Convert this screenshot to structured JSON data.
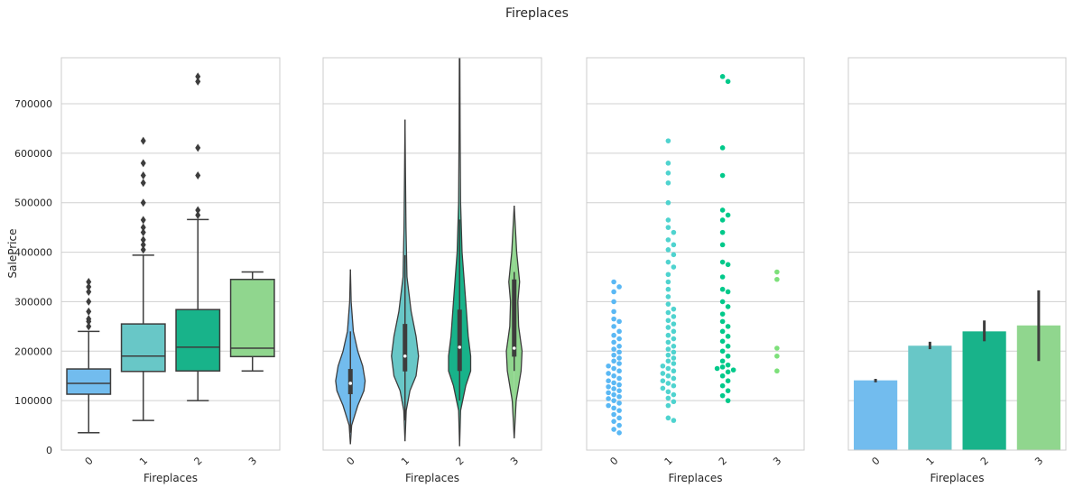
{
  "title": "Fireplaces",
  "chart_data": [
    {
      "type": "box",
      "xlabel": "Fireplaces",
      "ylabel": "SalePrice",
      "categories": [
        "0",
        "1",
        "2",
        "3"
      ],
      "colors": [
        "#72bcee",
        "#68c7c7",
        "#18b38a",
        "#90d68e"
      ],
      "whisker_low": [
        35000,
        60000,
        100000,
        160000
      ],
      "q1": [
        113000,
        159000,
        160000,
        189000
      ],
      "median": [
        135000,
        190000,
        208000,
        206000
      ],
      "q3": [
        164000,
        255000,
        284000,
        345000
      ],
      "whisker_high": [
        240000,
        394000,
        466000,
        360000
      ],
      "outliers": [
        [
          250000,
          260000,
          265000,
          280000,
          300000,
          320000,
          330000,
          340000
        ],
        [
          405000,
          415000,
          425000,
          440000,
          450000,
          465000,
          500000,
          540000,
          555000,
          580000,
          625000
        ],
        [
          475000,
          485000,
          555000,
          611000,
          745000,
          755000
        ],
        []
      ],
      "ylim": [
        0,
        793000
      ],
      "yticks": [
        0,
        100000,
        200000,
        300000,
        400000,
        500000,
        600000,
        700000
      ],
      "show_ytick_labels": true,
      "grid": true
    },
    {
      "type": "violin",
      "xlabel": "Fireplaces",
      "categories": [
        "0",
        "1",
        "2",
        "3"
      ],
      "colors": [
        "#72bcee",
        "#68c7c7",
        "#18b38a",
        "#90d68e"
      ],
      "density": [
        {
          "y": [
            12000,
            50000,
            90000,
            120000,
            140000,
            170000,
            200000,
            240000,
            300000,
            365000
          ],
          "width": [
            0,
            0.05,
            0.3,
            0.55,
            0.6,
            0.5,
            0.3,
            0.12,
            0.03,
            0
          ]
        },
        {
          "y": [
            18000,
            80000,
            120000,
            150000,
            190000,
            230000,
            280000,
            350000,
            450000,
            550000,
            668000
          ],
          "width": [
            0,
            0.05,
            0.2,
            0.45,
            0.55,
            0.45,
            0.25,
            0.08,
            0.04,
            0.02,
            0
          ]
        },
        {
          "y": [
            8000,
            80000,
            130000,
            160000,
            190000,
            230000,
            300000,
            400000,
            500000,
            650000,
            793000
          ],
          "width": [
            0,
            0.04,
            0.25,
            0.45,
            0.45,
            0.35,
            0.25,
            0.1,
            0.04,
            0.02,
            0.01
          ]
        },
        {
          "y": [
            24000,
            100000,
            160000,
            200000,
            250000,
            300000,
            340000,
            400000,
            494000
          ],
          "width": [
            0,
            0.08,
            0.28,
            0.32,
            0.18,
            0.15,
            0.22,
            0.1,
            0
          ]
        }
      ],
      "whisker_low": [
        35000,
        60000,
        100000,
        160000
      ],
      "q1": [
        113000,
        159000,
        160000,
        189000
      ],
      "median": [
        135000,
        190000,
        208000,
        206000
      ],
      "q3": [
        164000,
        255000,
        284000,
        345000
      ],
      "whisker_high": [
        240000,
        394000,
        466000,
        360000
      ],
      "ylim": [
        0,
        793000
      ],
      "yticks": [
        0,
        100000,
        200000,
        300000,
        400000,
        500000,
        600000,
        700000
      ],
      "show_ytick_labels": false,
      "grid": true
    },
    {
      "type": "swarm",
      "xlabel": "Fireplaces",
      "categories": [
        "0",
        "1",
        "2",
        "3"
      ],
      "colors": [
        "#5ab8f4",
        "#4fd3cf",
        "#00c98a",
        "#7de07a"
      ],
      "values": [
        [
          340000,
          330000,
          320000,
          300000,
          280000,
          265000,
          260000,
          250000,
          240000,
          232000,
          225000,
          218000,
          210000,
          204000,
          198000,
          192000,
          186000,
          180000,
          175000,
          170000,
          165000,
          160000,
          155000,
          150000,
          145000,
          140000,
          136000,
          132000,
          128000,
          124000,
          120000,
          116000,
          112000,
          108000,
          104000,
          100000,
          95000,
          90000,
          85000,
          80000,
          72000,
          65000,
          58000,
          50000,
          42000,
          35000
        ],
        [
          625000,
          580000,
          560000,
          540000,
          500000,
          465000,
          450000,
          440000,
          425000,
          415000,
          405000,
          395000,
          380000,
          370000,
          355000,
          340000,
          325000,
          310000,
          295000,
          285000,
          278000,
          270000,
          262000,
          255000,
          248000,
          240000,
          232000,
          225000,
          218000,
          210000,
          204000,
          198000,
          192000,
          186000,
          180000,
          175000,
          170000,
          165000,
          160000,
          155000,
          150000,
          145000,
          140000,
          135000,
          130000,
          125000,
          118000,
          112000,
          105000,
          98000,
          90000,
          65000,
          60000
        ],
        [
          755000,
          745000,
          611000,
          555000,
          485000,
          475000,
          465000,
          440000,
          415000,
          380000,
          375000,
          350000,
          325000,
          320000,
          300000,
          290000,
          275000,
          260000,
          250000,
          240000,
          230000,
          220000,
          210000,
          200000,
          190000,
          180000,
          172000,
          168000,
          165000,
          162000,
          158000,
          150000,
          140000,
          130000,
          120000,
          110000,
          100000
        ],
        [
          160000,
          190000,
          206000,
          345000,
          360000
        ]
      ],
      "ylim": [
        0,
        793000
      ],
      "yticks": [
        0,
        100000,
        200000,
        300000,
        400000,
        500000,
        600000,
        700000
      ],
      "show_ytick_labels": false,
      "grid": true
    },
    {
      "type": "bar",
      "xlabel": "Fireplaces",
      "categories": [
        "0",
        "1",
        "2",
        "3"
      ],
      "colors": [
        "#72bcee",
        "#68c7c7",
        "#18b38a",
        "#90d68e"
      ],
      "values": [
        141000,
        211000,
        240000,
        252000
      ],
      "ci_low": [
        137000,
        204000,
        220000,
        180000
      ],
      "ci_high": [
        144000,
        219000,
        262000,
        323000
      ],
      "ylim": [
        0,
        793000
      ],
      "yticks": [
        0,
        100000,
        200000,
        300000,
        400000,
        500000,
        600000,
        700000
      ],
      "show_ytick_labels": false,
      "grid": true
    }
  ]
}
